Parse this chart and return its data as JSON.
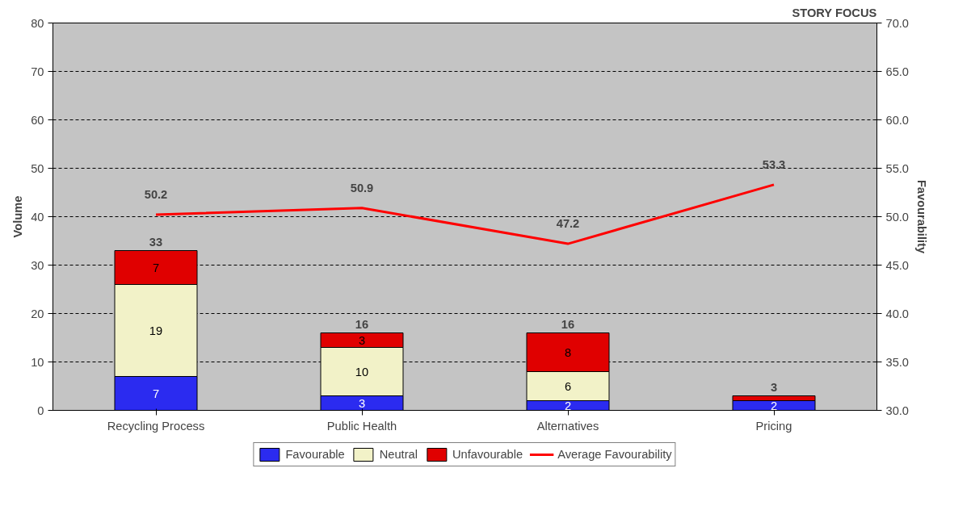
{
  "chart_data": {
    "type": "bar",
    "title": "STORY FOCUS",
    "ylabel": "Volume",
    "y2label": "Favourability",
    "categories": [
      "Recycling Process",
      "Public Health",
      "Alternatives",
      "Pricing"
    ],
    "stacked": true,
    "series": [
      {
        "name": "Favourable",
        "color": "#2b2bf0",
        "values": [
          7,
          3,
          2,
          2
        ],
        "value_labels": [
          "7",
          "3",
          "2",
          "2"
        ]
      },
      {
        "name": "Neutral",
        "color": "#f2f2c8",
        "values": [
          19,
          10,
          6,
          0
        ],
        "value_labels": [
          "19",
          "10",
          "6",
          null
        ]
      },
      {
        "name": "Unfavourable",
        "color": "#e00000",
        "values": [
          7,
          3,
          8,
          1
        ],
        "value_labels": [
          "7",
          "3",
          "8",
          null
        ]
      },
      {
        "name": "Average Favourability",
        "type": "line",
        "axis": "y2",
        "color": "#ff0000",
        "values": [
          50.2,
          50.9,
          47.2,
          53.3
        ],
        "value_labels": [
          "50.2",
          "50.9",
          "47.2",
          "53.3"
        ]
      }
    ],
    "totals": [
      "33",
      "16",
      "16",
      "3"
    ],
    "ylim": [
      0,
      80
    ],
    "yticks": [
      0,
      10,
      20,
      30,
      40,
      50,
      60,
      70,
      80
    ],
    "y2lim": [
      30,
      70
    ],
    "y2ticks": [
      {
        "value": 30,
        "label": "30.0"
      },
      {
        "value": 35,
        "label": "35.0"
      },
      {
        "value": 40,
        "label": "40.0"
      },
      {
        "value": 45,
        "label": "45.0"
      },
      {
        "value": 50,
        "label": "50.0"
      },
      {
        "value": 55,
        "label": "55.0"
      },
      {
        "value": 60,
        "label": "60.0"
      },
      {
        "value": 65,
        "label": "65.0"
      },
      {
        "value": 70,
        "label": "70.0"
      }
    ],
    "grid": "y",
    "line_style": "solid",
    "marker": "none",
    "legend": "bottom"
  }
}
